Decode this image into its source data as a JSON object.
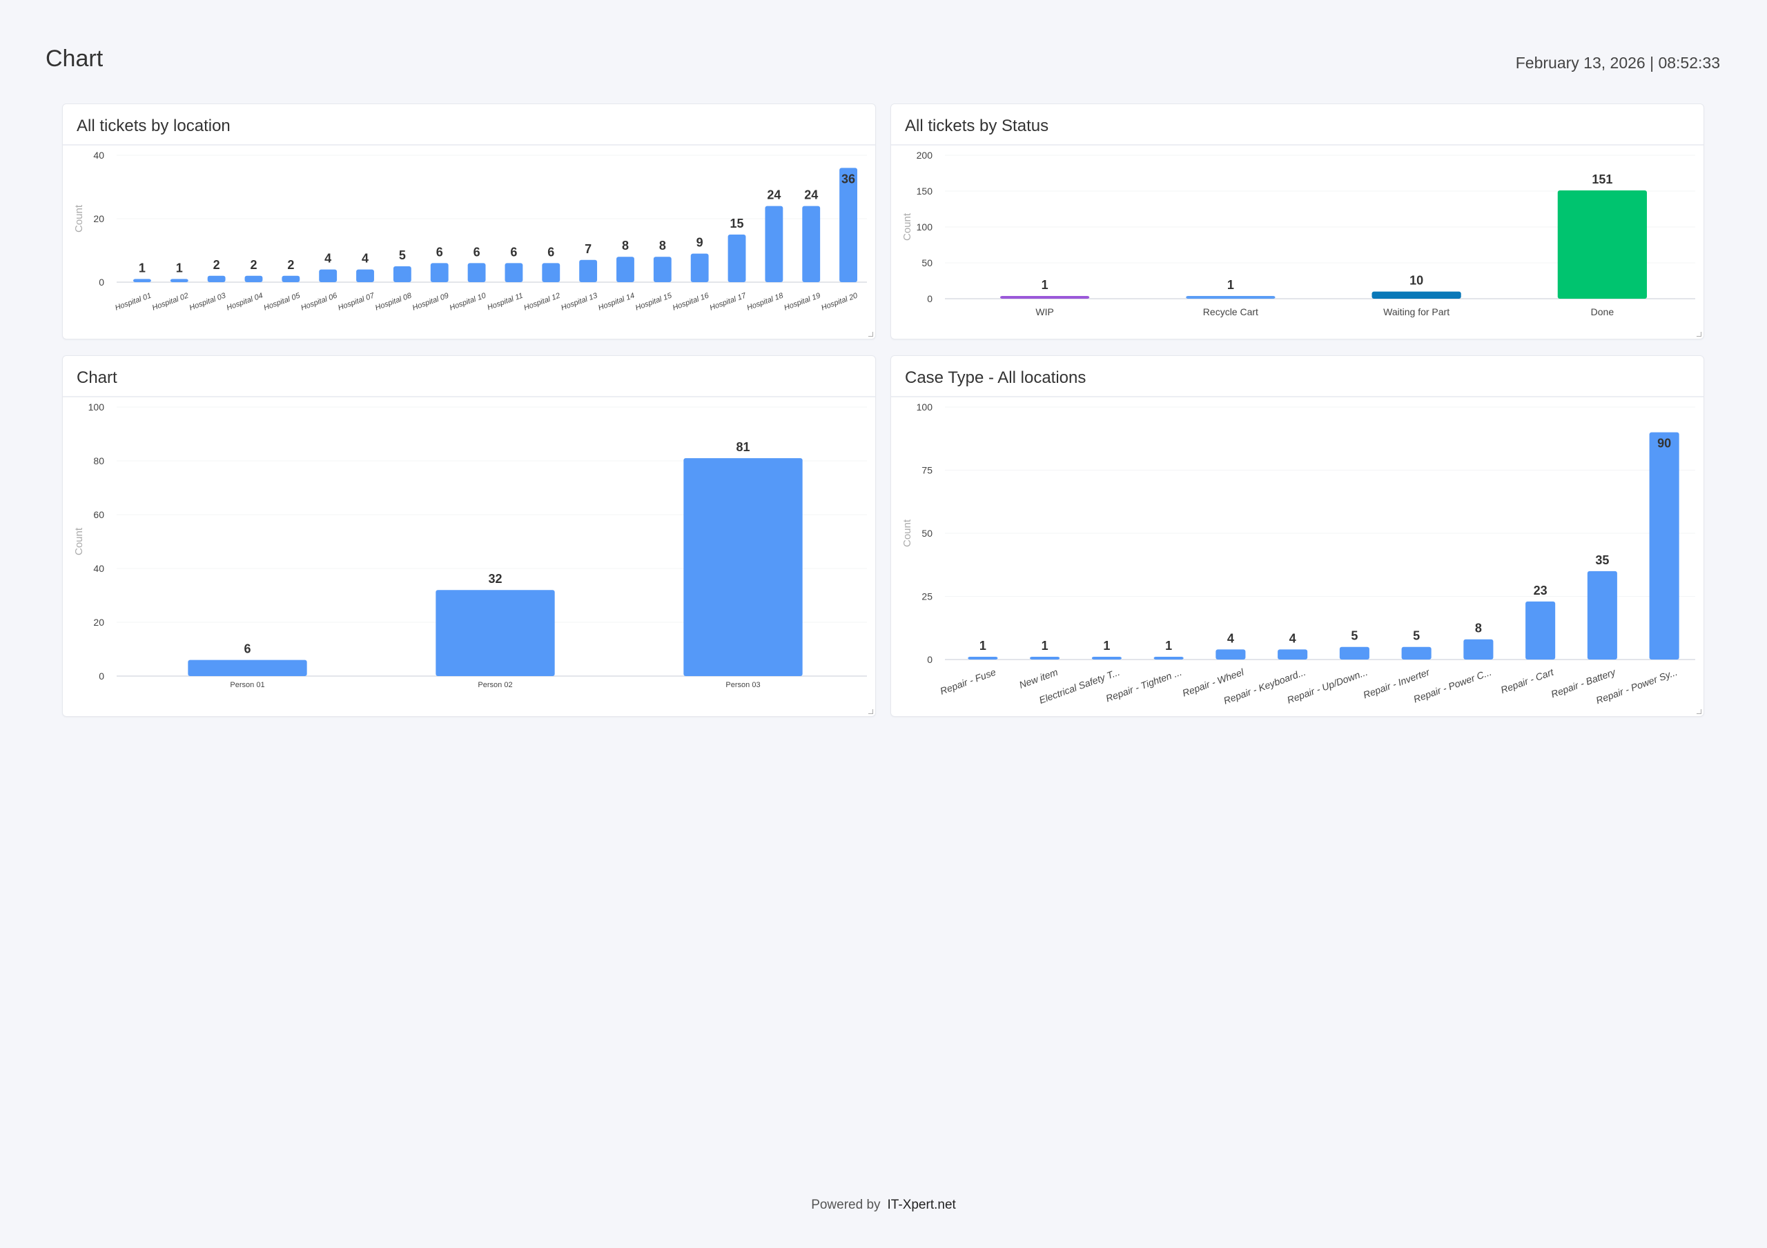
{
  "header": {
    "title": "Chart",
    "datetime": "February 13, 2026 | 08:52:33"
  },
  "footer": {
    "powered_by": "Powered by",
    "brand": "IT-Xpert.net"
  },
  "chart_data": [
    {
      "type": "bar",
      "title": "All tickets by location",
      "ylabel": "Count",
      "xlabel": "",
      "ylim": [
        0,
        40
      ],
      "yticks": [
        0,
        20,
        40
      ],
      "rotate_labels": true,
      "color": "#5599f8",
      "categories": [
        "Hospital 01",
        "Hospital 02",
        "Hospital 03",
        "Hospital 04",
        "Hospital 05",
        "Hospital 06",
        "Hospital 07",
        "Hospital 08",
        "Hospital 09",
        "Hospital 10",
        "Hospital 11",
        "Hospital 12",
        "Hospital 13",
        "Hospital 14",
        "Hospital 15",
        "Hospital 16",
        "Hospital 17",
        "Hospital 18",
        "Hospital 19",
        "Hospital 20"
      ],
      "values": [
        1,
        1,
        2,
        2,
        2,
        4,
        4,
        5,
        6,
        6,
        6,
        6,
        7,
        8,
        8,
        9,
        15,
        24,
        24,
        36
      ],
      "grid": true
    },
    {
      "type": "bar",
      "title": "All tickets by Status",
      "ylabel": "Count",
      "xlabel": "",
      "ylim": [
        0,
        200
      ],
      "yticks": [
        0,
        50,
        100,
        150,
        200
      ],
      "rotate_labels": false,
      "categories": [
        "WIP",
        "Recycle Cart",
        "Waiting for Part",
        "Done"
      ],
      "values": [
        1,
        1,
        10,
        151
      ],
      "colors": [
        "#9b59d9",
        "#5b9df6",
        "#0a78b8",
        "#00c46f"
      ],
      "grid": true
    },
    {
      "type": "bar",
      "title": "Chart",
      "ylabel": "Count",
      "xlabel": "",
      "ylim": [
        0,
        100
      ],
      "yticks": [
        0,
        20,
        40,
        60,
        80,
        100
      ],
      "rotate_labels": false,
      "color": "#5599f8",
      "categories": [
        "Person 01",
        "Person 02",
        "Person 03"
      ],
      "values": [
        6,
        32,
        81
      ],
      "grid": true
    },
    {
      "type": "bar",
      "title": "Case Type - All locations",
      "ylabel": "Count",
      "xlabel": "",
      "ylim": [
        0,
        100
      ],
      "yticks": [
        0,
        25,
        50,
        75,
        100
      ],
      "rotate_labels": true,
      "color": "#5599f8",
      "categories": [
        "Repair - Fuse",
        "New item",
        "Electrical Safety T...",
        "Repair - Tighten ...",
        "Repair - Wheel",
        "Repair - Keyboard...",
        "Repair - Up/Down...",
        "Repair - Inverter",
        "Repair - Power C...",
        "Repair - Cart",
        "Repair - Battery",
        "Repair - Power Sy..."
      ],
      "values": [
        1,
        1,
        1,
        1,
        4,
        4,
        5,
        5,
        8,
        23,
        35,
        90
      ],
      "grid": true
    }
  ]
}
